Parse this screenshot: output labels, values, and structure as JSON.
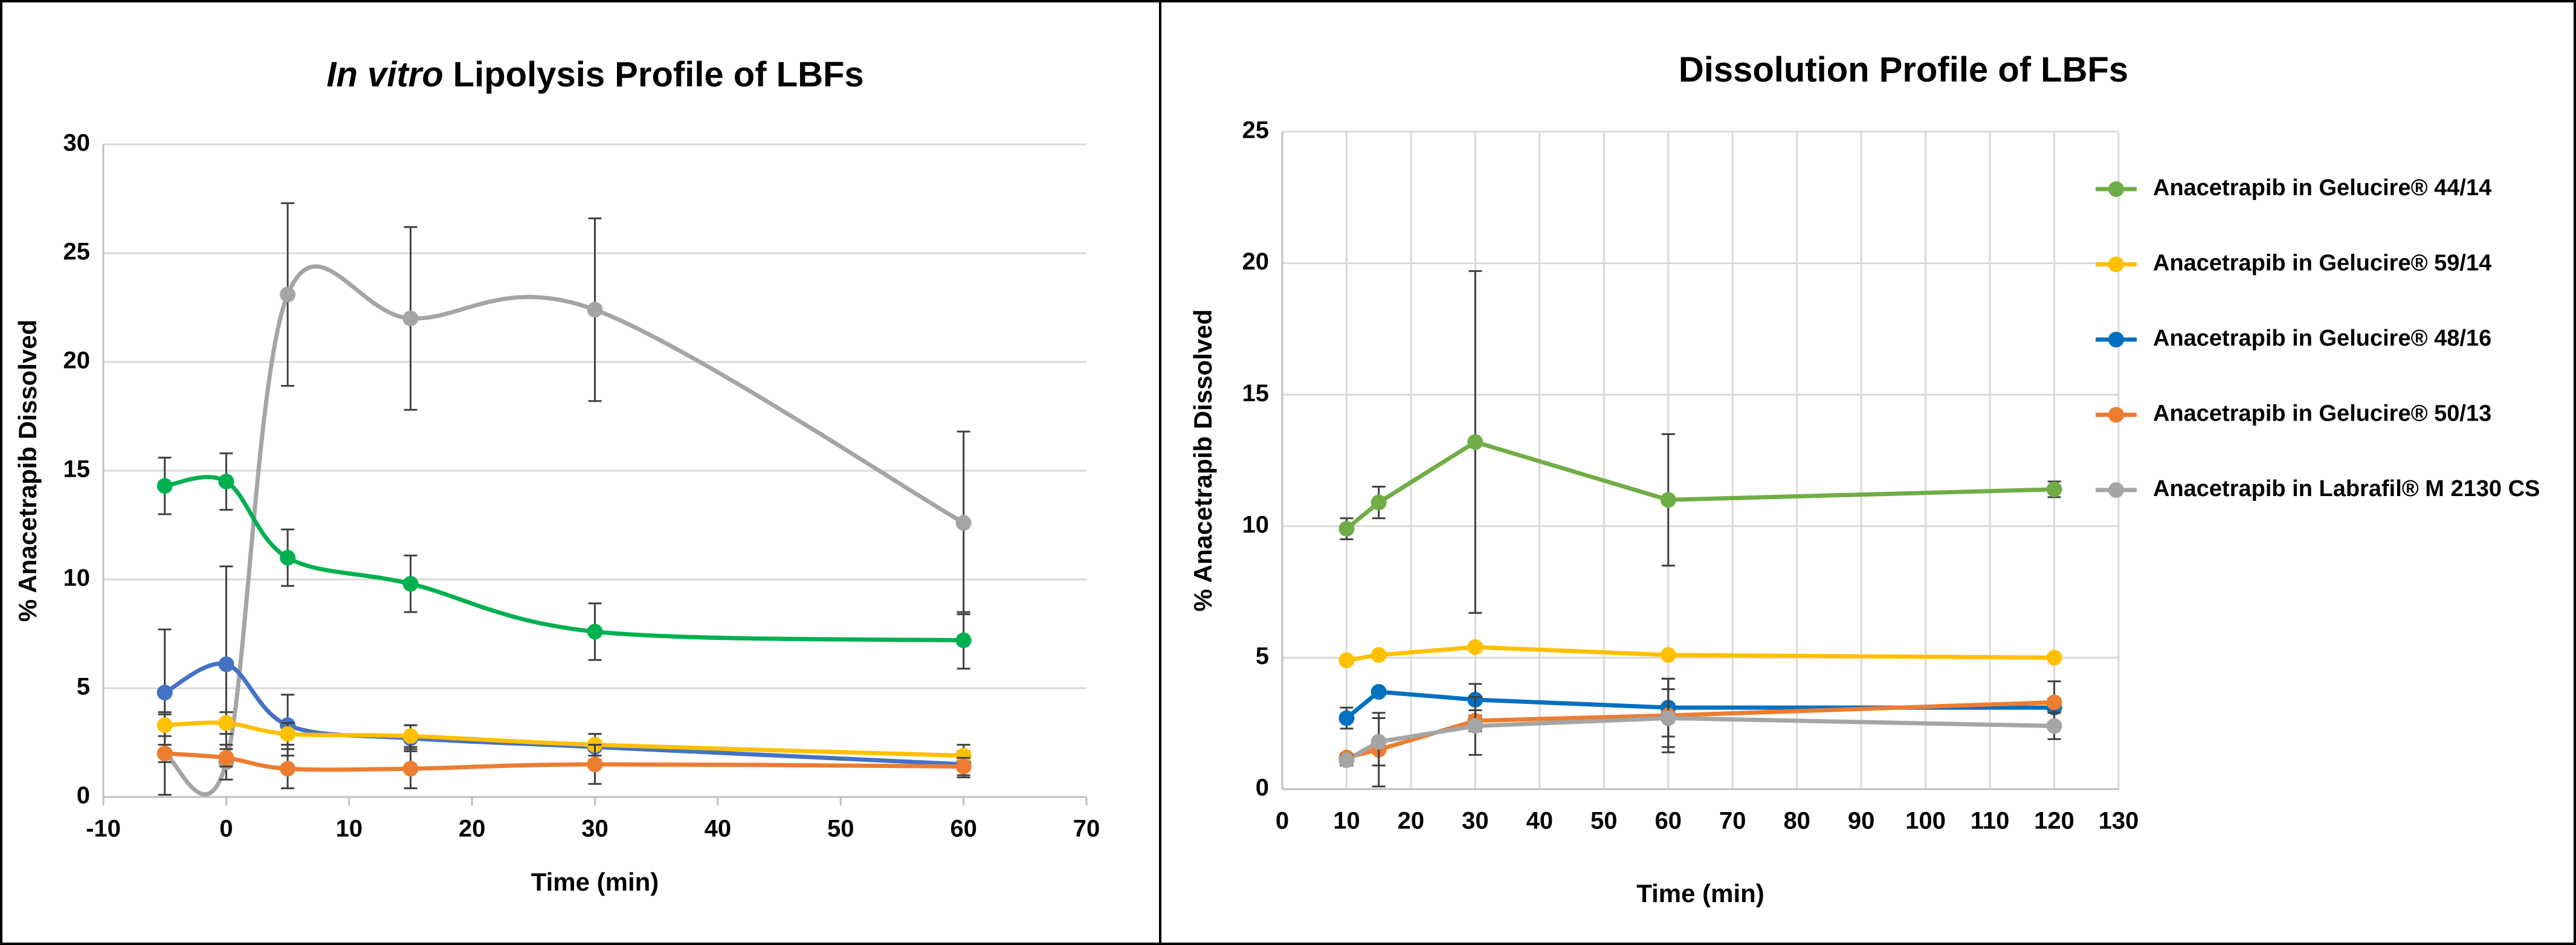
{
  "chart_data": [
    {
      "type": "line",
      "title": [
        "In vitro",
        "Lipolysis Profile of LBFs"
      ],
      "smooth": true,
      "grid": true,
      "xgrid": false,
      "x_label": "Time (min)",
      "y_label": "% Anacetrapib Dissolved",
      "x": [
        -5,
        0,
        5,
        15,
        30,
        60
      ],
      "xlim": [
        -10,
        70
      ],
      "xticks": [
        -10,
        0,
        10,
        20,
        30,
        40,
        50,
        60,
        70
      ],
      "ylim": [
        0,
        30
      ],
      "yticks": [
        0,
        5,
        10,
        15,
        20,
        25,
        30
      ],
      "series": [
        {
          "color": "#a5a5a5",
          "values": [
            2.0,
            1.6,
            23.1,
            22.0,
            22.4,
            12.6
          ],
          "errors": [
            1.9,
            0.8,
            4.2,
            4.2,
            4.2,
            4.2
          ]
        },
        {
          "color": "#00b050",
          "values": [
            14.3,
            14.5,
            11.0,
            9.8,
            7.6,
            7.2
          ],
          "errors": [
            1.3,
            1.3,
            1.3,
            1.3,
            1.3,
            1.3
          ]
        },
        {
          "color": "#4472c4",
          "values": [
            4.8,
            6.1,
            3.3,
            2.7,
            2.3,
            1.5
          ],
          "errors": [
            2.9,
            4.5,
            1.4,
            0.6,
            0.6,
            0.6
          ]
        },
        {
          "color": "#ffc000",
          "values": [
            3.3,
            3.4,
            2.9,
            2.8,
            2.4,
            1.9
          ],
          "errors": [
            0.5,
            0.5,
            0.5,
            0.5,
            0.5,
            0.5
          ]
        },
        {
          "color": "#ed7d31",
          "values": [
            2.0,
            1.8,
            1.3,
            1.3,
            1.5,
            1.4
          ],
          "errors": [
            0.4,
            0.4,
            0.9,
            0.9,
            0.9,
            0.4
          ]
        }
      ]
    },
    {
      "type": "line",
      "title": [
        "Dissolution Profile of LBFs"
      ],
      "smooth": false,
      "grid": true,
      "xgrid": true,
      "x_label": "Time (min)",
      "y_label": "% Anacetrapib Dissolved",
      "x": [
        10,
        15,
        30,
        60,
        120
      ],
      "xlim": [
        0,
        130
      ],
      "xticks": [
        0,
        10,
        20,
        30,
        40,
        50,
        60,
        70,
        80,
        90,
        100,
        110,
        120,
        130
      ],
      "ylim": [
        0,
        25
      ],
      "yticks": [
        0,
        5,
        10,
        15,
        20,
        25
      ],
      "legend": "right",
      "series": [
        {
          "name": "Anacetrapib in Gelucire® 44/14",
          "color": "#70ad47",
          "values": [
            9.9,
            10.9,
            13.2,
            11.0,
            11.4
          ],
          "errors": [
            0.4,
            0.6,
            6.5,
            2.5,
            0.3
          ]
        },
        {
          "name": "Anacetrapib in Gelucire® 59/14",
          "color": "#ffc000",
          "values": [
            4.9,
            5.1,
            5.4,
            5.1,
            5.0
          ],
          "errors": [
            0.1,
            0.1,
            0.1,
            0.1,
            0.1
          ]
        },
        {
          "name": "Anacetrapib in Gelucire® 48/16",
          "color": "#0070c0",
          "values": [
            2.7,
            3.7,
            3.4,
            3.1,
            3.1
          ],
          "errors": [
            0.4,
            0.1,
            0.6,
            1.1,
            0.1
          ]
        },
        {
          "name": "Anacetrapib in Gelucire® 50/13",
          "color": "#ed7d31",
          "values": [
            1.2,
            1.5,
            2.6,
            2.8,
            3.3
          ],
          "errors": [
            0.1,
            1.4,
            0.4,
            1.4,
            0.8
          ]
        },
        {
          "name": "Anacetrapib in Labrafil® M 2130 CS",
          "color": "#a5a5a5",
          "values": [
            1.1,
            1.8,
            2.4,
            2.7,
            2.4
          ],
          "errors": [
            0.2,
            0.9,
            1.1,
            1.1,
            0.5
          ]
        }
      ]
    }
  ]
}
